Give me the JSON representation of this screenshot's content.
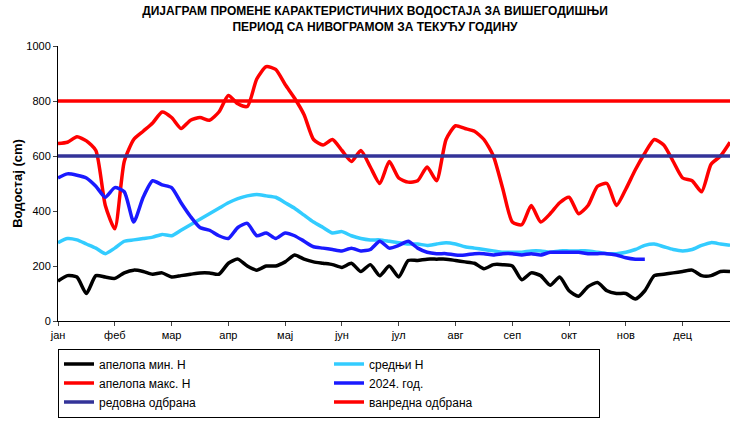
{
  "chart_data": {
    "type": "line",
    "title": "ДИЈАГРАМ ПРОМЕНЕ КАРАКТЕРИСТИЧНИХ ВОДОСТАЈА ЗА ВИШЕГОДИШЊИ\nПЕРИОД СА НИВОГРАМОМ ЗА ТЕКУЋУ ГОДИНУ",
    "y_label": "Водостај (cm)",
    "categories": [
      "јан",
      null,
      null,
      null,
      null,
      null,
      "феб",
      null,
      null,
      null,
      null,
      null,
      "мар",
      null,
      null,
      null,
      null,
      null,
      "апр",
      null,
      null,
      null,
      null,
      null,
      "мај",
      null,
      null,
      null,
      null,
      null,
      "јун",
      null,
      null,
      null,
      null,
      null,
      "јул",
      null,
      null,
      null,
      null,
      null,
      "авг",
      null,
      null,
      null,
      null,
      null,
      "сеп",
      null,
      null,
      null,
      null,
      null,
      "окт",
      null,
      null,
      null,
      null,
      null,
      "нов",
      null,
      null,
      null,
      null,
      null,
      "дец",
      null,
      null,
      null,
      null,
      null
    ],
    "series": [
      {
        "name": "апелопа мин. Н",
        "color": "#000000",
        "values": [
          145,
          165,
          160,
          100,
          165,
          160,
          155,
          175,
          185,
          180,
          170,
          175,
          160,
          165,
          170,
          175,
          175,
          170,
          210,
          225,
          200,
          185,
          200,
          200,
          215,
          240,
          225,
          215,
          210,
          205,
          195,
          210,
          180,
          205,
          165,
          200,
          160,
          220,
          220,
          225,
          225,
          225,
          220,
          215,
          210,
          190,
          205,
          205,
          200,
          150,
          175,
          165,
          130,
          160,
          110,
          90,
          125,
          140,
          110,
          100,
          100,
          80,
          110,
          165,
          170,
          175,
          180,
          185,
          165,
          165,
          180,
          180
        ]
      },
      {
        "name": "средњи Н",
        "color": "#33ccff",
        "values": [
          285,
          300,
          295,
          280,
          265,
          245,
          265,
          290,
          295,
          300,
          305,
          315,
          310,
          330,
          350,
          370,
          390,
          410,
          430,
          445,
          455,
          460,
          455,
          450,
          430,
          410,
          385,
          360,
          340,
          320,
          325,
          310,
          300,
          295,
          295,
          290,
          285,
          280,
          280,
          275,
          280,
          285,
          280,
          270,
          265,
          260,
          255,
          250,
          250,
          250,
          255,
          255,
          250,
          255,
          255,
          255,
          255,
          250,
          245,
          245,
          250,
          260,
          275,
          280,
          270,
          260,
          255,
          260,
          275,
          285,
          280,
          275
        ]
      },
      {
        "name": "апелопа макс. Н",
        "color": "#ff0000",
        "values": [
          645,
          650,
          670,
          655,
          620,
          420,
          335,
          580,
          660,
          690,
          720,
          760,
          740,
          700,
          730,
          740,
          730,
          760,
          820,
          790,
          780,
          880,
          925,
          915,
          860,
          810,
          750,
          660,
          640,
          660,
          620,
          580,
          620,
          560,
          500,
          580,
          520,
          505,
          510,
          560,
          510,
          660,
          710,
          700,
          690,
          660,
          600,
          480,
          360,
          350,
          420,
          360,
          390,
          430,
          450,
          390,
          420,
          490,
          500,
          420,
          480,
          550,
          610,
          660,
          640,
          580,
          520,
          510,
          470,
          570,
          600,
          650
        ]
      },
      {
        "name": "2024. год.",
        "color": "#1a1aff",
        "values": [
          520,
          535,
          530,
          520,
          490,
          450,
          485,
          470,
          360,
          450,
          510,
          495,
          485,
          430,
          380,
          340,
          330,
          310,
          300,
          340,
          355,
          310,
          320,
          300,
          320,
          310,
          290,
          270,
          265,
          260,
          255,
          265,
          255,
          260,
          290,
          265,
          275,
          290,
          265,
          250,
          245,
          245,
          240,
          240,
          245,
          245,
          240,
          245,
          245,
          240,
          245,
          240,
          250,
          250,
          250,
          250,
          245,
          245,
          245,
          240,
          230,
          225,
          225,
          null,
          null,
          null,
          null,
          null,
          null,
          null,
          null,
          null
        ]
      },
      {
        "name": "редовна одбрана",
        "color": "#333399",
        "values": [
          600,
          600,
          600,
          600,
          600,
          600,
          600,
          600,
          600,
          600,
          600,
          600,
          600,
          600,
          600,
          600,
          600,
          600,
          600,
          600,
          600,
          600,
          600,
          600,
          600,
          600,
          600,
          600,
          600,
          600,
          600,
          600,
          600,
          600,
          600,
          600,
          600,
          600,
          600,
          600,
          600,
          600,
          600,
          600,
          600,
          600,
          600,
          600,
          600,
          600,
          600,
          600,
          600,
          600,
          600,
          600,
          600,
          600,
          600,
          600,
          600,
          600,
          600,
          600,
          600,
          600,
          600,
          600,
          600,
          600,
          600,
          600
        ]
      },
      {
        "name": "ванредна одбрана",
        "color": "#ff0000",
        "values": [
          800,
          800,
          800,
          800,
          800,
          800,
          800,
          800,
          800,
          800,
          800,
          800,
          800,
          800,
          800,
          800,
          800,
          800,
          800,
          800,
          800,
          800,
          800,
          800,
          800,
          800,
          800,
          800,
          800,
          800,
          800,
          800,
          800,
          800,
          800,
          800,
          800,
          800,
          800,
          800,
          800,
          800,
          800,
          800,
          800,
          800,
          800,
          800,
          800,
          800,
          800,
          800,
          800,
          800,
          800,
          800,
          800,
          800,
          800,
          800,
          800,
          800,
          800,
          800,
          800,
          800,
          800,
          800,
          800,
          800,
          800,
          800
        ]
      }
    ],
    "ylim": [
      0,
      1000
    ],
    "yticks": [
      0,
      200,
      400,
      600,
      800,
      1000
    ],
    "grid": false,
    "legend": "bottom"
  }
}
